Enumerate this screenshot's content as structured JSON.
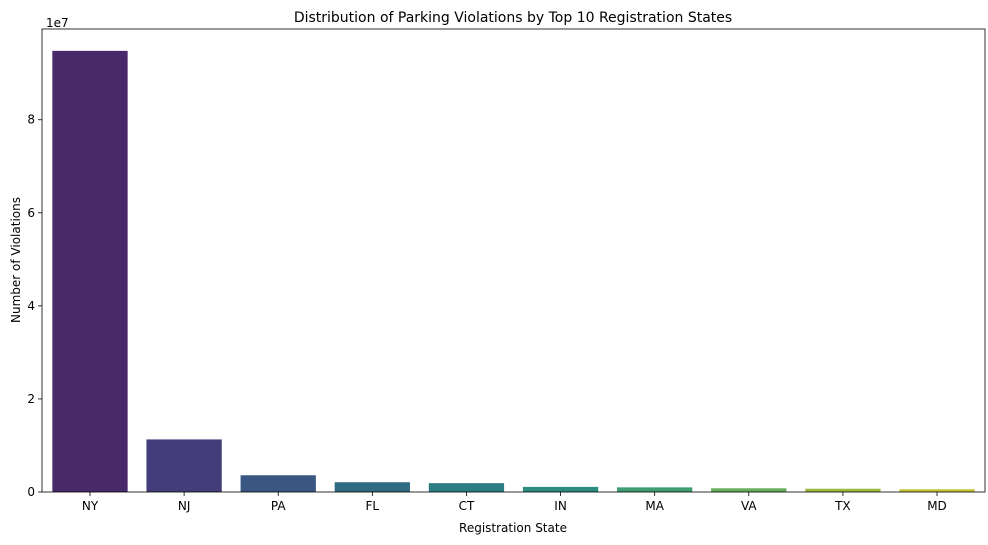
{
  "chart_data": {
    "type": "bar",
    "title": "Distribution of Parking Violations by Top 10 Registration States",
    "xlabel": "Registration State",
    "ylabel": "Number of Violations",
    "offset_label": "1e7",
    "categories": [
      "NY",
      "NJ",
      "PA",
      "FL",
      "CT",
      "IN",
      "MA",
      "VA",
      "TX",
      "MD"
    ],
    "values": [
      94800000,
      11300000,
      3600000,
      2100000,
      1900000,
      1100000,
      1000000,
      800000,
      700000,
      600000
    ],
    "colors": [
      "#482475",
      "#414487",
      "#355f8d",
      "#2a788e",
      "#21918c",
      "#22a884",
      "#44bf70",
      "#7ad151",
      "#bddf26",
      "#fde725"
    ],
    "bar_colors_rendered": [
      "#482a6b",
      "#433e7a",
      "#3a5783",
      "#316b82",
      "#2b7d82",
      "#2a8d80",
      "#3f9d72",
      "#67ad5c",
      "#9bba3f",
      "#c5c536"
    ],
    "ylim": [
      0,
      99500000
    ],
    "yticks": [
      0,
      20000000,
      40000000,
      60000000,
      80000000
    ],
    "ytick_labels": [
      "0",
      "2",
      "4",
      "6",
      "8"
    ],
    "grid": false,
    "legend": "none"
  }
}
